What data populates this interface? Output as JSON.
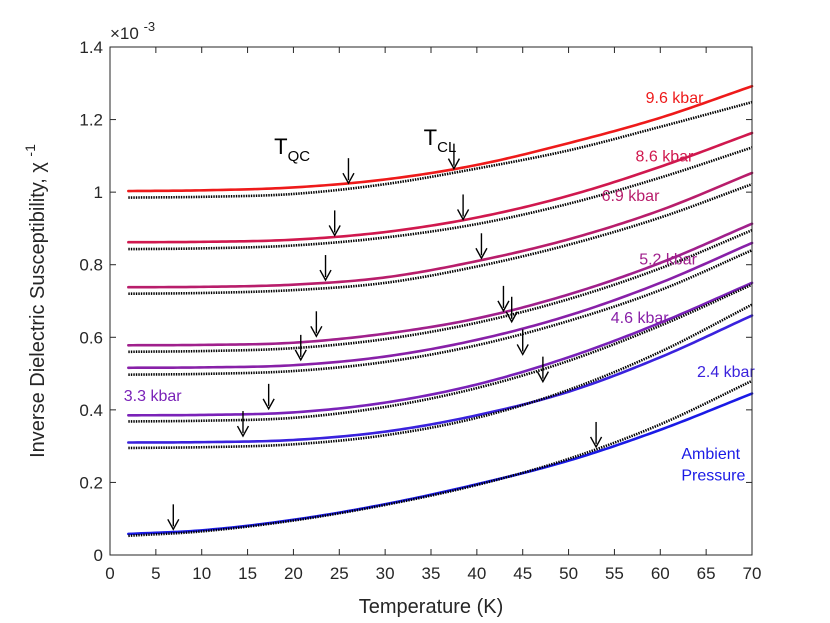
{
  "chart_data": {
    "type": "line",
    "title": "",
    "xlabel": "Temperature (K)",
    "ylabel": "Inverse Dielectric Susceptibility, χ",
    "ylabel_superscript": "-1",
    "y_scale_label": "×10",
    "y_scale_exponent": "-3",
    "xlim": [
      0,
      70
    ],
    "ylim": [
      0,
      1.4
    ],
    "xticks": [
      "0",
      "5",
      "10",
      "15",
      "20",
      "25",
      "30",
      "35",
      "40",
      "45",
      "50",
      "55",
      "60",
      "65",
      "70"
    ],
    "yticks": [
      "0",
      "0.2",
      "0.4",
      "0.6",
      "0.8",
      "1",
      "1.2",
      "1.4"
    ],
    "grid": false,
    "legend": "none",
    "series": [
      {
        "name": "9.6 kbar",
        "color": "#ee1a1a",
        "x": [
          2,
          10,
          20,
          30,
          40,
          50,
          60,
          70
        ],
        "data": [
          1.003,
          1.005,
          1.013,
          1.035,
          1.075,
          1.135,
          1.205,
          1.292
        ],
        "fit": [
          0.985,
          0.987,
          0.995,
          1.022,
          1.065,
          1.115,
          1.18,
          1.248
        ]
      },
      {
        "name": "8.6 kbar",
        "color": "#d0184e",
        "x": [
          2,
          10,
          20,
          30,
          40,
          50,
          60,
          70
        ],
        "data": [
          0.862,
          0.863,
          0.869,
          0.89,
          0.93,
          0.99,
          1.07,
          1.163
        ],
        "fit": [
          0.843,
          0.845,
          0.853,
          0.875,
          0.912,
          0.968,
          1.04,
          1.123
        ]
      },
      {
        "name": "6.9 kbar",
        "color": "#b81d6b",
        "x": [
          2,
          10,
          20,
          30,
          40,
          50,
          60,
          70
        ],
        "data": [
          0.738,
          0.739,
          0.745,
          0.765,
          0.81,
          0.87,
          0.95,
          1.053
        ],
        "fit": [
          0.72,
          0.722,
          0.73,
          0.75,
          0.795,
          0.855,
          0.93,
          1.022
        ]
      },
      {
        "name": "5.2 kbar",
        "color": "#a0208c",
        "x": [
          2,
          10,
          20,
          30,
          40,
          50,
          60,
          70
        ],
        "data": [
          0.578,
          0.579,
          0.585,
          0.61,
          0.652,
          0.718,
          0.805,
          0.913
        ],
        "fit": [
          0.56,
          0.562,
          0.57,
          0.595,
          0.64,
          0.705,
          0.79,
          0.895
        ]
      },
      {
        "name": "4.6 kbar",
        "color": "#8820a8",
        "x": [
          2,
          10,
          20,
          30,
          40,
          50,
          60,
          70
        ],
        "data": [
          0.516,
          0.517,
          0.523,
          0.547,
          0.593,
          0.66,
          0.75,
          0.86
        ],
        "fit": [
          0.497,
          0.499,
          0.507,
          0.532,
          0.578,
          0.645,
          0.73,
          0.84
        ]
      },
      {
        "name": "3.3 kbar",
        "color": "#7a22b8",
        "x": [
          2,
          10,
          20,
          30,
          40,
          50,
          60,
          70
        ],
        "data": [
          0.385,
          0.386,
          0.393,
          0.42,
          0.47,
          0.545,
          0.64,
          0.75
        ],
        "fit": [
          0.368,
          0.37,
          0.378,
          0.408,
          0.46,
          0.535,
          0.632,
          0.745
        ]
      },
      {
        "name": "2.4 kbar",
        "color": "#3a22dd",
        "x": [
          2,
          10,
          20,
          30,
          40,
          50,
          60,
          70
        ],
        "data": [
          0.31,
          0.311,
          0.317,
          0.34,
          0.385,
          0.45,
          0.545,
          0.66
        ],
        "fit": [
          0.295,
          0.297,
          0.305,
          0.33,
          0.378,
          0.455,
          0.56,
          0.69
        ]
      },
      {
        "name": "Ambient Pressure",
        "color": "#1a1ae6",
        "x": [
          2,
          10,
          20,
          30,
          40,
          50,
          60,
          70
        ],
        "data": [
          0.058,
          0.068,
          0.097,
          0.14,
          0.195,
          0.26,
          0.345,
          0.445
        ],
        "fit": [
          0.053,
          0.065,
          0.095,
          0.138,
          0.193,
          0.265,
          0.36,
          0.48
        ]
      }
    ],
    "series_labels": [
      {
        "text": "9.6 kbar",
        "color": "#ee1a1a",
        "x": 58.4,
        "y": 1.245
      },
      {
        "text": "8.6 kbar",
        "color": "#d0184e",
        "x": 57.3,
        "y": 1.085
      },
      {
        "text": "6.9 kbar",
        "color": "#b81d6b",
        "x": 53.6,
        "y": 0.975
      },
      {
        "text": "5.2 kbar",
        "color": "#a0208c",
        "x": 57.7,
        "y": 0.8
      },
      {
        "text": "4.6 kbar",
        "color": "#8820a8",
        "x": 54.6,
        "y": 0.64
      },
      {
        "text": "2.4 kbar",
        "color": "#3a22dd",
        "x": 64.0,
        "y": 0.49
      },
      {
        "text": "3.3 kbar",
        "color": "#7a22b8",
        "x": 1.5,
        "y": 0.425
      },
      {
        "text": "Ambient",
        "color": "#1a1ae6",
        "x": 62.3,
        "y": 0.265
      },
      {
        "text": "Pressure",
        "color": "#1a1ae6",
        "x": 62.3,
        "y": 0.205
      }
    ],
    "annotations": [
      {
        "text": "T",
        "sub": "QC",
        "x": 17.9,
        "y": 1.105
      },
      {
        "text": "T",
        "sub": "CL",
        "x": 34.2,
        "y": 1.13
      }
    ],
    "arrows": [
      {
        "x": 26.0,
        "y": 1.022
      },
      {
        "x": 37.5,
        "y": 1.062
      },
      {
        "x": 24.5,
        "y": 0.878
      },
      {
        "x": 38.5,
        "y": 0.922
      },
      {
        "x": 23.5,
        "y": 0.755
      },
      {
        "x": 40.5,
        "y": 0.815
      },
      {
        "x": 22.5,
        "y": 0.6
      },
      {
        "x": 42.9,
        "y": 0.67
      },
      {
        "x": 20.8,
        "y": 0.535
      },
      {
        "x": 43.8,
        "y": 0.64
      },
      {
        "x": 17.3,
        "y": 0.4
      },
      {
        "x": 45.0,
        "y": 0.55
      },
      {
        "x": 14.5,
        "y": 0.325
      },
      {
        "x": 47.2,
        "y": 0.475
      },
      {
        "x": 6.9,
        "y": 0.068
      },
      {
        "x": 53.0,
        "y": 0.295
      }
    ]
  }
}
